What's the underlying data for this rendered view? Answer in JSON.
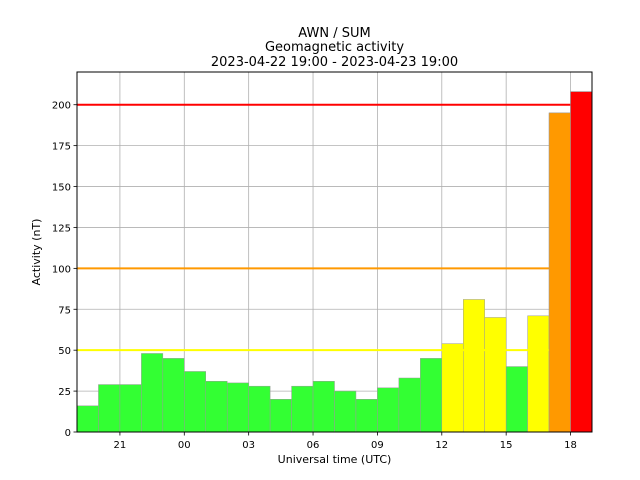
{
  "chart_data": {
    "type": "bar",
    "title_lines": [
      "AWN / SUM",
      "Geomagnetic activity",
      "2023-04-22 19:00 - 2023-04-23 19:00"
    ],
    "xlabel": "Universal time (UTC)",
    "ylabel": "Activity (nT)",
    "ylim": [
      0,
      220
    ],
    "yticks": [
      0,
      25,
      50,
      75,
      100,
      125,
      150,
      175,
      200
    ],
    "xlim_hours": [
      19,
      43
    ],
    "xticks": [
      {
        "hour": 21,
        "label": "21"
      },
      {
        "hour": 24,
        "label": "00"
      },
      {
        "hour": 27,
        "label": "03"
      },
      {
        "hour": 30,
        "label": "06"
      },
      {
        "hour": 33,
        "label": "09"
      },
      {
        "hour": 36,
        "label": "12"
      },
      {
        "hour": 39,
        "label": "15"
      },
      {
        "hour": 42,
        "label": "18"
      }
    ],
    "grid": true,
    "bins_start_hour": 19,
    "bin_width_hours": 1,
    "values": [
      16,
      29,
      29,
      48,
      45,
      37,
      31,
      30,
      28,
      20,
      28,
      31,
      25,
      20,
      27,
      33,
      45,
      54,
      81,
      70,
      40,
      71,
      195,
      208
    ],
    "thresholds": [
      {
        "value": 50,
        "color": "#ffff00"
      },
      {
        "value": 100,
        "color": "#ff9900"
      },
      {
        "value": 200,
        "color": "#ff0000"
      }
    ],
    "colors": {
      "low": "#33ff33",
      "moderate": "#ffff00",
      "high": "#ff9900",
      "extreme": "#ff0000"
    }
  }
}
